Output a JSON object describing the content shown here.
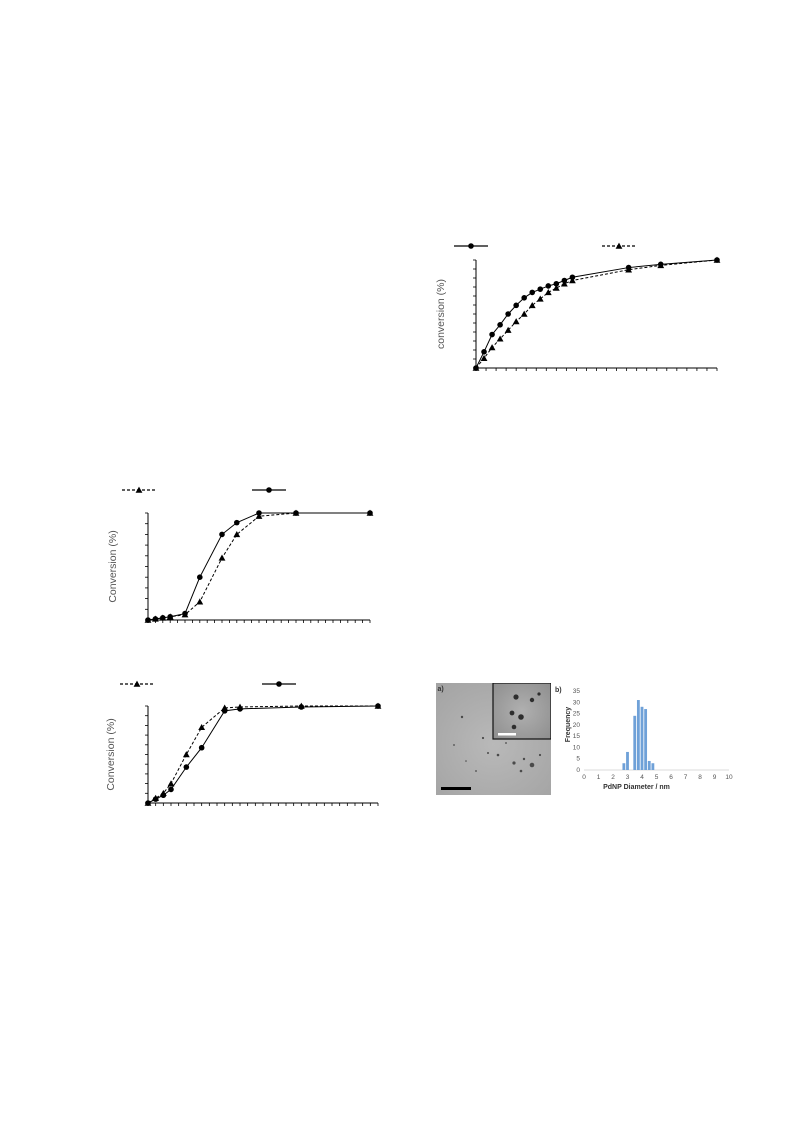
{
  "chart_data": [
    {
      "type": "line",
      "ylabel": "conversion (%)",
      "xlim": [
        0,
        30
      ],
      "ylim": [
        0,
        100
      ],
      "series": [
        {
          "marker": "circle",
          "dash": false,
          "x": [
            0,
            1,
            2,
            3,
            4,
            5,
            6,
            7,
            8,
            9,
            10,
            11,
            12,
            19,
            23,
            30
          ],
          "y": [
            0,
            15,
            31,
            40,
            50,
            58,
            65,
            70,
            73,
            76,
            78,
            81,
            84,
            93,
            96,
            100
          ]
        },
        {
          "marker": "triangle",
          "dash": true,
          "x": [
            0,
            1,
            2,
            3,
            4,
            5,
            6,
            7,
            8,
            9,
            10,
            11,
            12,
            19,
            23,
            30
          ],
          "y": [
            0,
            9,
            19,
            27,
            35,
            43,
            50,
            58,
            64,
            70,
            74,
            78,
            81,
            91,
            95,
            100
          ]
        }
      ],
      "legend_position": "top"
    },
    {
      "type": "line",
      "ylabel": "Conversion (%)",
      "xlim": [
        0,
        30
      ],
      "ylim": [
        0,
        100
      ],
      "series": [
        {
          "marker": "triangle",
          "dash": true,
          "x": [
            0,
            1,
            2,
            3,
            5,
            7,
            10,
            12,
            15,
            20,
            30
          ],
          "y": [
            0,
            1,
            2,
            3,
            5,
            17,
            58,
            80,
            97,
            100,
            100
          ]
        },
        {
          "marker": "circle",
          "dash": false,
          "x": [
            0,
            1,
            2,
            3,
            5,
            7,
            10,
            12,
            15,
            20,
            30
          ],
          "y": [
            0,
            1,
            2,
            3,
            6,
            40,
            80,
            91,
            100,
            100,
            100
          ]
        }
      ],
      "legend_position": "top"
    },
    {
      "type": "line",
      "ylabel": "Conversion (%)",
      "xlim": [
        0,
        30
      ],
      "ylim": [
        0,
        100
      ],
      "series": [
        {
          "marker": "triangle",
          "dash": true,
          "x": [
            0,
            1,
            2,
            3,
            5,
            7,
            10,
            12,
            20,
            30
          ],
          "y": [
            0,
            5,
            10,
            20,
            50,
            78,
            98,
            99,
            100,
            100
          ]
        },
        {
          "marker": "circle",
          "dash": false,
          "x": [
            0,
            1,
            2,
            3,
            5,
            7,
            10,
            12,
            20,
            30
          ],
          "y": [
            0,
            4,
            8,
            14,
            37,
            57,
            95,
            97,
            99,
            100
          ]
        }
      ],
      "legend_position": "top"
    },
    {
      "type": "bar",
      "panel_label": "b)",
      "ylabel": "Frequency",
      "xlabel": "PdNP Diameter / nm",
      "x_ticks": [
        "0",
        "1",
        "2",
        "3",
        "4",
        "5",
        "6",
        "7",
        "8",
        "9",
        "10"
      ],
      "y_ticks": [
        "0",
        "5",
        "10",
        "15",
        "20",
        "25",
        "30",
        "35"
      ],
      "xlim": [
        0,
        10
      ],
      "ylim": [
        0,
        35
      ],
      "bin_width": 0.25,
      "bin_centers": [
        2.75,
        3.0,
        3.25,
        3.5,
        3.75,
        4.0,
        4.25,
        4.5,
        4.75,
        5.0,
        5.25
      ],
      "values": [
        3,
        8,
        0,
        24,
        31,
        28,
        27,
        4,
        3,
        0,
        0
      ],
      "bar_color": "#6fa1d8"
    }
  ],
  "tem_panel": {
    "panel_label": "a)"
  }
}
